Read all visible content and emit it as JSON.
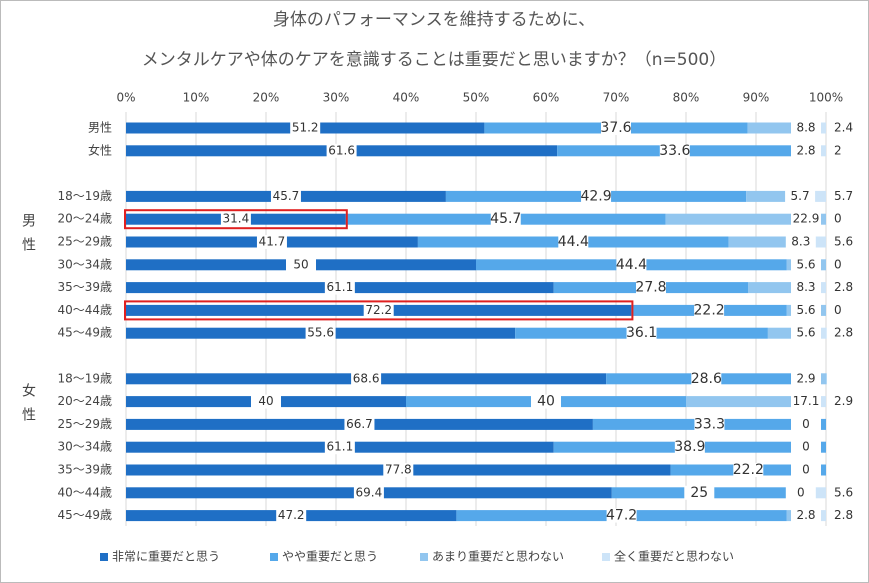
{
  "chart_data": {
    "type": "stacked-bar-horizontal",
    "title": [
      "身体のパフォーマンスを維持するために、",
      "メンタルケアや体のケアを意識することは重要だと思いますか？（n=500）"
    ],
    "group_labels": [
      "男性",
      "女性"
    ],
    "categories": [
      "男性",
      "女性",
      null,
      "18～19歳",
      "20～24歳",
      "25～29歳",
      "30～34歳",
      "35～39歳",
      "40～44歳",
      "45～49歳",
      null,
      "18～19歳",
      "20～24歳",
      "25～29歳",
      "30～34歳",
      "35～39歳",
      "40～44歳",
      "45～49歳"
    ],
    "series": [
      {
        "name": "非常に重要だと思う",
        "color": "#1f6fc5",
        "values": [
          51.2,
          61.6,
          null,
          45.7,
          31.4,
          41.7,
          50,
          61.1,
          72.2,
          55.6,
          null,
          68.6,
          40,
          66.7,
          61.1,
          77.8,
          69.4,
          47.2
        ]
      },
      {
        "name": "やや重要だと思う",
        "color": "#55a8ea",
        "values": [
          37.6,
          33.6,
          null,
          42.9,
          45.7,
          44.4,
          44.4,
          27.8,
          22.2,
          36.1,
          null,
          28.6,
          40,
          33.3,
          38.9,
          22.2,
          25,
          47.2
        ]
      },
      {
        "name": "あまり重要だと思わない",
        "color": "#92c6ef",
        "values": [
          8.8,
          2.8,
          null,
          5.7,
          22.9,
          8.3,
          5.6,
          8.3,
          5.6,
          5.6,
          null,
          2.9,
          17.1,
          0,
          0,
          0,
          0,
          2.8
        ]
      },
      {
        "name": "全く重要だと思わない",
        "color": "#cde4f8",
        "values": [
          2.4,
          2,
          null,
          5.7,
          0,
          5.6,
          0,
          2.8,
          0,
          2.8,
          null,
          null,
          2.9,
          null,
          null,
          null,
          5.6,
          2.8
        ]
      }
    ],
    "xlim": [
      0,
      100
    ],
    "xticks": [
      {
        "value": 0,
        "label": "0%"
      },
      {
        "value": 10,
        "label": "10%"
      },
      {
        "value": 20,
        "label": "20%"
      },
      {
        "value": 30,
        "label": "30%"
      },
      {
        "value": 40,
        "label": "40%"
      },
      {
        "value": 50,
        "label": "50%"
      },
      {
        "value": 60,
        "label": "60%"
      },
      {
        "value": 70,
        "label": "70%"
      },
      {
        "value": 80,
        "label": "80%"
      },
      {
        "value": 90,
        "label": "90%"
      },
      {
        "value": 100,
        "label": "100%"
      }
    ],
    "grid": true,
    "legend": "bottom"
  }
}
